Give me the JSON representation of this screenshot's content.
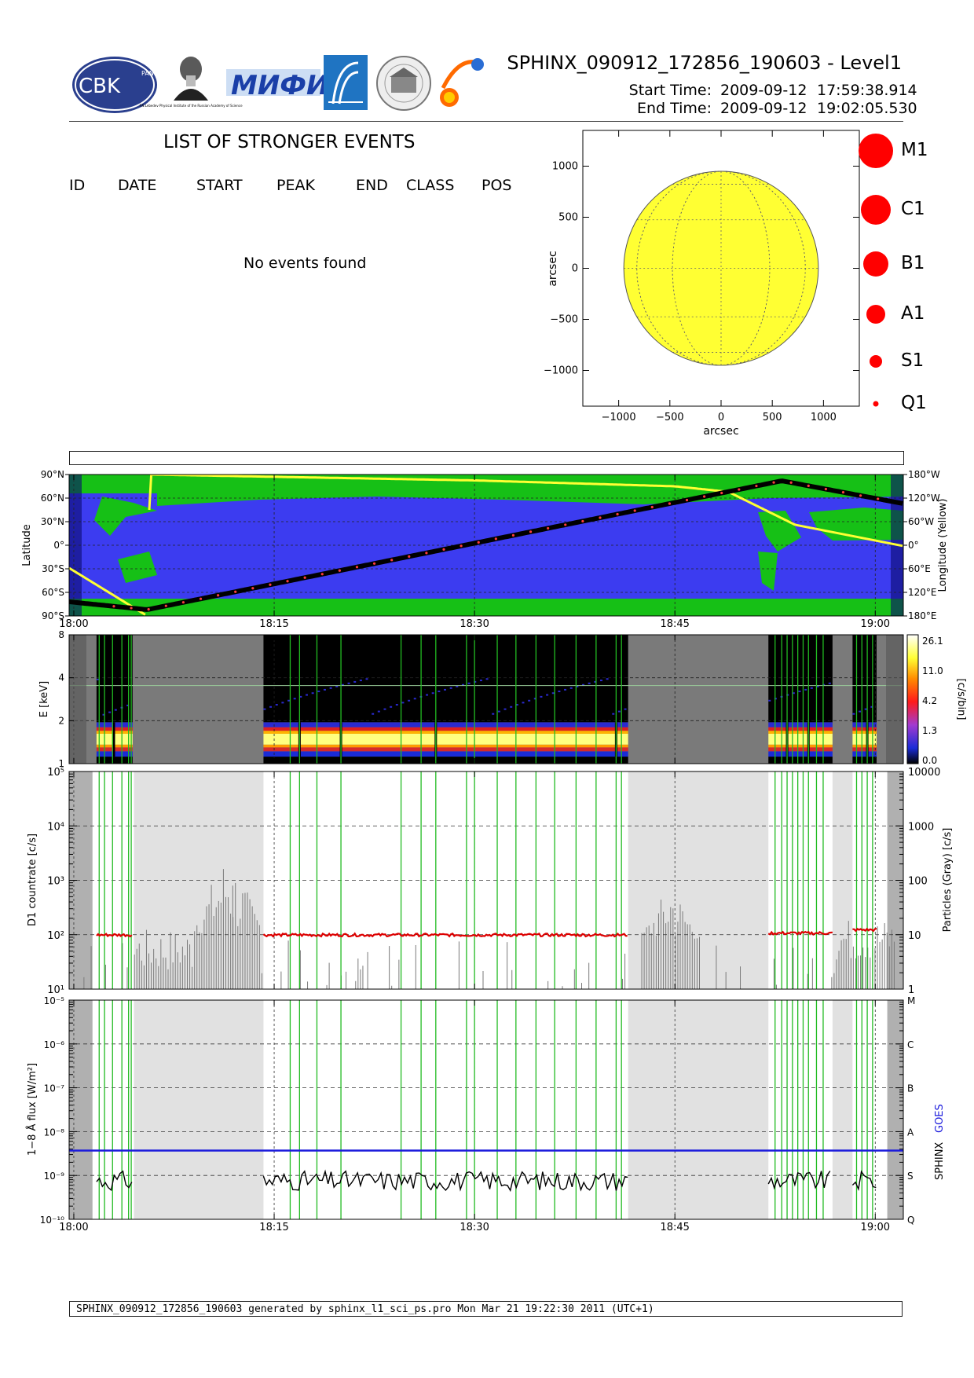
{
  "header": {
    "title": "SPHINX_090912_172856_190603 - Level1",
    "start_label": "Start Time:",
    "start_date": "2009-09-12",
    "start_time": "17:59:38.914",
    "end_label": "End Time:",
    "end_date": "2009-09-12",
    "end_time": "19:02:05.530"
  },
  "logos": {
    "cbk_text": "CBK",
    "cbk_pan": "PAN",
    "lebedev_caption": "P.N.Lebedev Physical Institute of the Russian Academy of Science",
    "mifi_text": "МИФИ",
    "names": [
      "cbk-logo",
      "lebedev-portrait-logo",
      "mifi-logo",
      "institute-arch-logo",
      "university-seal-logo",
      "sun-orbit-logo"
    ]
  },
  "events": {
    "title": "LIST OF STRONGER EVENTS",
    "columns": [
      "ID",
      "DATE",
      "START",
      "PEAK",
      "END",
      "CLASS",
      "POS"
    ],
    "empty_message": "No events found"
  },
  "legend": {
    "items": [
      "M1",
      "C1",
      "B1",
      "A1",
      "S1",
      "Q1"
    ],
    "color": "#ff0000"
  },
  "colors": {
    "ocean": "#3c3cf0",
    "land": "#16c016",
    "sun": "#ffff33",
    "grid_green": "#22bb22",
    "red_trace": "#dd0000",
    "goes_blue": "#1a1adc",
    "shade": "#e1e1e1",
    "shade_dark": "#b0b0b0"
  },
  "footer": {
    "text": "SPHINX_090912_172856_190603 generated by sphinx_l1_sci_ps.pro Mon Mar 21 19:22:30 2011 (UTC+1)"
  },
  "chart_data": [
    {
      "type": "scatter",
      "name": "sun-disk",
      "xlabel": "arcsec",
      "ylabel": "arcsec",
      "xlim": [
        -1350,
        1350
      ],
      "ylim": [
        -1350,
        1350
      ],
      "xticks": [
        -1000,
        -500,
        0,
        500,
        1000
      ],
      "yticks": [
        1000,
        500,
        0,
        -500,
        -1000
      ],
      "xtick_labels": [
        "−1000",
        "−500",
        "0",
        "500",
        "1000"
      ],
      "ytick_labels": [
        "1000",
        "500",
        "0",
        "−500",
        "−1000"
      ],
      "disk_radius": 950,
      "points": []
    },
    {
      "type": "line",
      "name": "orbit-map",
      "ylabel": "Latitude",
      "ylabel_right": "Longitude (Yellow)",
      "ylim": [
        -90,
        90
      ],
      "lat_ticks": [
        "90°N",
        "60°N",
        "30°N",
        "0°",
        "30°S",
        "60°S",
        "90°S"
      ],
      "lon_ticks": [
        "180°W",
        "120°W",
        "60°W",
        "0°",
        "60°E",
        "120°E",
        "180°E"
      ],
      "x_ticks": [
        "18:00",
        "18:15",
        "18:30",
        "18:45",
        "19:00"
      ],
      "x_tick_minutes": [
        0,
        15,
        30,
        45,
        60
      ],
      "xlim_minutes": [
        -0.35,
        62.1
      ],
      "latitude_track": {
        "minutes": [
          -0.35,
          5.5,
          53,
          62.1
        ],
        "lat": [
          -72,
          -82,
          82,
          53
        ]
      },
      "longitude_track": {
        "minutes": [
          -0.35,
          5.5,
          5.7,
          30,
          45,
          49,
          54,
          62.1
        ],
        "lon_deg_east": [
          58,
          180,
          -180,
          -165,
          -150,
          -136,
          -52,
          2
        ]
      }
    },
    {
      "type": "heatmap",
      "name": "spectrogram",
      "ylabel": "E [keV]",
      "yticks": [
        1,
        2,
        4,
        8
      ],
      "ylim": [
        1,
        8
      ],
      "colorbar_label": "[c/s/bin]",
      "colorbar_ticks": [
        "26.1",
        "11.0",
        "4.2",
        "1.3",
        "0.0"
      ],
      "data_segments_minutes": [
        [
          1.7,
          4.4
        ],
        [
          14.2,
          41.5
        ],
        [
          52,
          56.8
        ],
        [
          58.3,
          60.1
        ]
      ],
      "peak_band_kev": [
        1.35,
        1.75
      ]
    },
    {
      "type": "line",
      "name": "d1-countrate",
      "ylabel": "D1 countrate [c/s]",
      "ylabel_right": "Particles (Gray) [c/s]",
      "yscale": "log",
      "ylim": [
        10,
        100000
      ],
      "yticks_left": [
        "10¹",
        "10²",
        "10³",
        "10⁴",
        "10⁵"
      ],
      "yticks_right": [
        "1",
        "10",
        "100",
        "1000",
        "10000"
      ],
      "series": [
        {
          "name": "D1",
          "color": "red",
          "segments_minutes": [
            [
              1.7,
              4.4
            ],
            [
              14.2,
              41.5
            ],
            [
              52,
              56.8
            ],
            [
              58.3,
              60.1
            ]
          ],
          "level": 100
        }
      ]
    },
    {
      "type": "line",
      "name": "flux",
      "ylabel": "1−8 Å flux [W/m²]",
      "ylabel_right_sphinx": "SPHINX",
      "ylabel_right_goes": "GOES",
      "yscale": "log",
      "ylim": [
        1e-10,
        1e-05
      ],
      "yticks_left": [
        "10⁻¹⁰",
        "10⁻⁹",
        "10⁻⁸",
        "10⁻⁷",
        "10⁻⁶",
        "10⁻⁵"
      ],
      "class_labels": [
        "Q",
        "S",
        "A",
        "B",
        "C",
        "M"
      ],
      "goes_level": 3.7e-09,
      "sphinx_level": 8e-10,
      "series": [
        {
          "name": "GOES",
          "color": "blue"
        },
        {
          "name": "SPHINX",
          "color": "black"
        }
      ]
    }
  ]
}
